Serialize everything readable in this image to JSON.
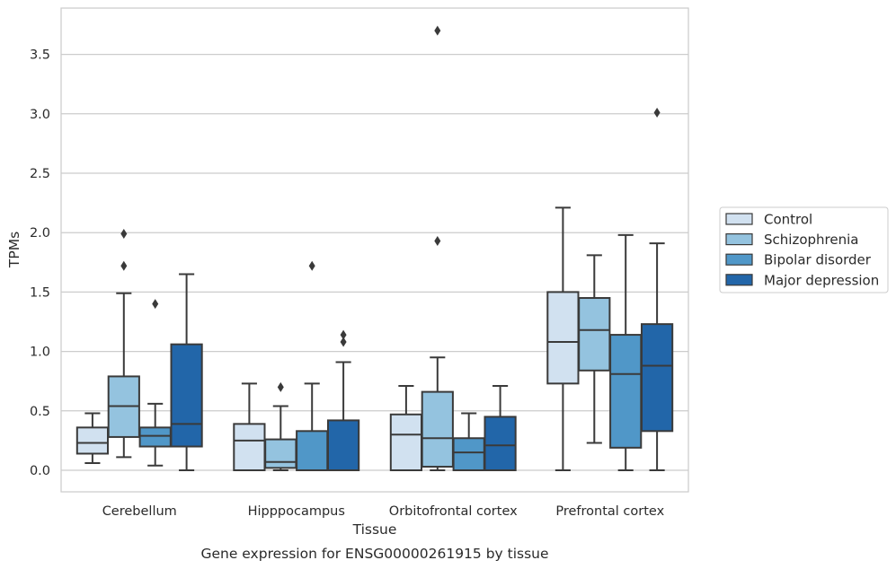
{
  "caption": "Gene expression for ENSG00000261915 by tissue",
  "chart_data": {
    "type": "boxplot",
    "xlabel": "Tissue",
    "ylabel": "TPMs",
    "ylim": [
      -0.18,
      3.9
    ],
    "yticks": [
      0.0,
      0.5,
      1.0,
      1.5,
      2.0,
      2.5,
      3.0,
      3.5
    ],
    "ytick_labels": [
      "0.0",
      "0.5",
      "1.0",
      "1.5",
      "2.0",
      "2.5",
      "3.0",
      "3.5"
    ],
    "grid": "horizontal",
    "legend_position": "right",
    "categories": [
      "Cerebellum",
      "Hipppocampus",
      "Orbitofrontal cortex",
      "Prefrontal cortex"
    ],
    "series": [
      {
        "name": "Control",
        "color": "#d1e1f0",
        "boxes": [
          {
            "q1": 0.14,
            "median": 0.23,
            "q3": 0.36,
            "whisker_low": 0.06,
            "whisker_high": 0.48,
            "outliers": []
          },
          {
            "q1": 0.0,
            "median": 0.25,
            "q3": 0.39,
            "whisker_low": 0.0,
            "whisker_high": 0.73,
            "outliers": []
          },
          {
            "q1": 0.0,
            "median": 0.3,
            "q3": 0.47,
            "whisker_low": 0.0,
            "whisker_high": 0.71,
            "outliers": []
          },
          {
            "q1": 0.73,
            "median": 1.08,
            "q3": 1.5,
            "whisker_low": 0.0,
            "whisker_high": 2.21,
            "outliers": []
          }
        ]
      },
      {
        "name": "Schizophrenia",
        "color": "#94c3df",
        "boxes": [
          {
            "q1": 0.28,
            "median": 0.54,
            "q3": 0.79,
            "whisker_low": 0.11,
            "whisker_high": 1.49,
            "outliers": [
              1.72,
              1.99
            ]
          },
          {
            "q1": 0.02,
            "median": 0.07,
            "q3": 0.26,
            "whisker_low": 0.0,
            "whisker_high": 0.54,
            "outliers": [
              0.7
            ]
          },
          {
            "q1": 0.03,
            "median": 0.27,
            "q3": 0.66,
            "whisker_low": 0.0,
            "whisker_high": 0.95,
            "outliers": [
              1.93,
              3.7
            ]
          },
          {
            "q1": 0.84,
            "median": 1.18,
            "q3": 1.45,
            "whisker_low": 0.23,
            "whisker_high": 1.81,
            "outliers": []
          }
        ]
      },
      {
        "name": "Bipolar disorder",
        "color": "#5097c8",
        "boxes": [
          {
            "q1": 0.2,
            "median": 0.29,
            "q3": 0.36,
            "whisker_low": 0.04,
            "whisker_high": 0.56,
            "outliers": [
              1.4
            ]
          },
          {
            "q1": 0.0,
            "median": 0.0,
            "q3": 0.33,
            "whisker_low": 0.0,
            "whisker_high": 0.73,
            "outliers": [
              1.72
            ]
          },
          {
            "q1": 0.0,
            "median": 0.15,
            "q3": 0.27,
            "whisker_low": 0.0,
            "whisker_high": 0.48,
            "outliers": []
          },
          {
            "q1": 0.19,
            "median": 0.81,
            "q3": 1.14,
            "whisker_low": 0.0,
            "whisker_high": 1.98,
            "outliers": []
          }
        ]
      },
      {
        "name": "Major depression",
        "color": "#2266a9",
        "boxes": [
          {
            "q1": 0.2,
            "median": 0.39,
            "q3": 1.06,
            "whisker_low": 0.0,
            "whisker_high": 1.65,
            "outliers": []
          },
          {
            "q1": 0.0,
            "median": 0.0,
            "q3": 0.42,
            "whisker_low": 0.0,
            "whisker_high": 0.91,
            "outliers": [
              1.08,
              1.14
            ]
          },
          {
            "q1": 0.0,
            "median": 0.21,
            "q3": 0.45,
            "whisker_low": 0.0,
            "whisker_high": 0.71,
            "outliers": []
          },
          {
            "q1": 0.33,
            "median": 0.88,
            "q3": 1.23,
            "whisker_low": 0.0,
            "whisker_high": 1.91,
            "outliers": [
              3.01
            ]
          }
        ]
      }
    ]
  }
}
